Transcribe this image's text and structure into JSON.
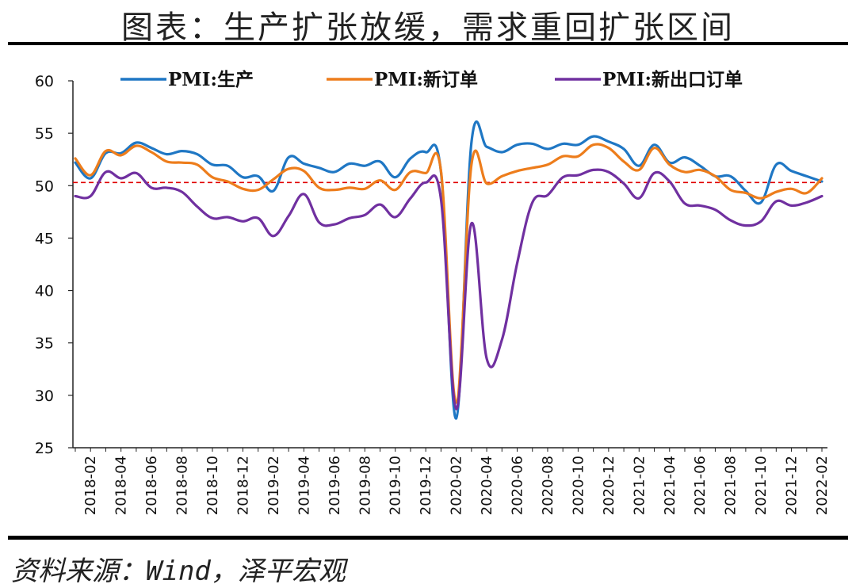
{
  "title": "图表：生产扩张放缓，需求重回扩张区间",
  "source": "资料来源：Wind，泽平宏观",
  "colors": {
    "production": "#1f77c4",
    "new_orders": "#ed7d1c",
    "export_orders": "#7030a0",
    "reference_line": "#e00000"
  },
  "chart_data": {
    "type": "line",
    "ylim": [
      25,
      60
    ],
    "yticks": [
      25,
      30,
      35,
      40,
      45,
      50,
      55,
      60
    ],
    "xtick_labels": [
      "2018-02",
      "2018-04",
      "2018-06",
      "2018-08",
      "2018-10",
      "2018-12",
      "2019-02",
      "2019-04",
      "2019-06",
      "2019-08",
      "2019-10",
      "2019-12",
      "2020-02",
      "2020-04",
      "2020-06",
      "2020-08",
      "2020-10",
      "2020-12",
      "2021-02",
      "2021-04",
      "2021-06",
      "2021-08",
      "2021-10",
      "2021-12",
      "2022-02"
    ],
    "reference_line": 50.3,
    "legend_position": "top",
    "grid": false,
    "x": [
      "2018-01",
      "2018-02",
      "2018-03",
      "2018-04",
      "2018-05",
      "2018-06",
      "2018-07",
      "2018-08",
      "2018-09",
      "2018-10",
      "2018-11",
      "2018-12",
      "2019-01",
      "2019-02",
      "2019-03",
      "2019-04",
      "2019-05",
      "2019-06",
      "2019-07",
      "2019-08",
      "2019-09",
      "2019-10",
      "2019-11",
      "2019-12",
      "2020-01",
      "2020-02",
      "2020-03",
      "2020-04",
      "2020-05",
      "2020-06",
      "2020-07",
      "2020-08",
      "2020-09",
      "2020-10",
      "2020-11",
      "2020-12",
      "2021-01",
      "2021-02",
      "2021-03",
      "2021-04",
      "2021-05",
      "2021-06",
      "2021-07",
      "2021-08",
      "2021-09",
      "2021-10",
      "2021-11",
      "2021-12",
      "2022-01",
      "2022-02"
    ],
    "series": [
      {
        "name": "PMI:生产",
        "values": [
          52.2,
          50.7,
          53.1,
          53.1,
          54.1,
          53.6,
          53.0,
          53.3,
          53.0,
          52.0,
          51.9,
          50.8,
          50.9,
          49.5,
          52.7,
          52.1,
          51.7,
          51.3,
          52.1,
          51.9,
          52.3,
          50.8,
          52.6,
          53.2,
          51.3,
          27.8,
          54.1,
          53.7,
          53.2,
          53.9,
          54.0,
          53.5,
          54.0,
          53.9,
          54.7,
          54.2,
          53.5,
          51.9,
          53.9,
          52.2,
          52.7,
          51.9,
          50.9,
          50.9,
          49.5,
          48.4,
          52.0,
          51.4,
          50.9,
          50.4
        ]
      },
      {
        "name": "PMI:新订单",
        "values": [
          52.6,
          51.0,
          53.3,
          52.9,
          53.8,
          53.2,
          52.3,
          52.2,
          52.0,
          50.8,
          50.4,
          49.7,
          49.6,
          50.6,
          51.6,
          51.4,
          49.8,
          49.6,
          49.8,
          49.7,
          50.5,
          49.6,
          51.3,
          51.2,
          51.4,
          29.3,
          52.0,
          50.2,
          50.9,
          51.4,
          51.7,
          52.0,
          52.8,
          52.8,
          53.9,
          53.6,
          52.3,
          51.5,
          53.6,
          52.0,
          51.3,
          51.5,
          50.9,
          49.6,
          49.3,
          48.8,
          49.4,
          49.7,
          49.3,
          50.7
        ]
      },
      {
        "name": "PMI:新出口订单",
        "values": [
          49.0,
          49.0,
          51.3,
          50.7,
          51.2,
          49.8,
          49.8,
          49.4,
          48.0,
          46.9,
          47.0,
          46.6,
          46.9,
          45.2,
          47.1,
          49.2,
          46.5,
          46.3,
          46.9,
          47.2,
          48.2,
          47.0,
          48.8,
          50.3,
          48.7,
          28.7,
          46.4,
          33.5,
          35.3,
          42.6,
          48.4,
          49.1,
          50.8,
          51.0,
          51.5,
          51.3,
          50.2,
          48.8,
          51.2,
          50.4,
          48.3,
          48.1,
          47.7,
          46.7,
          46.2,
          46.6,
          48.5,
          48.1,
          48.4,
          49.0
        ]
      }
    ]
  }
}
